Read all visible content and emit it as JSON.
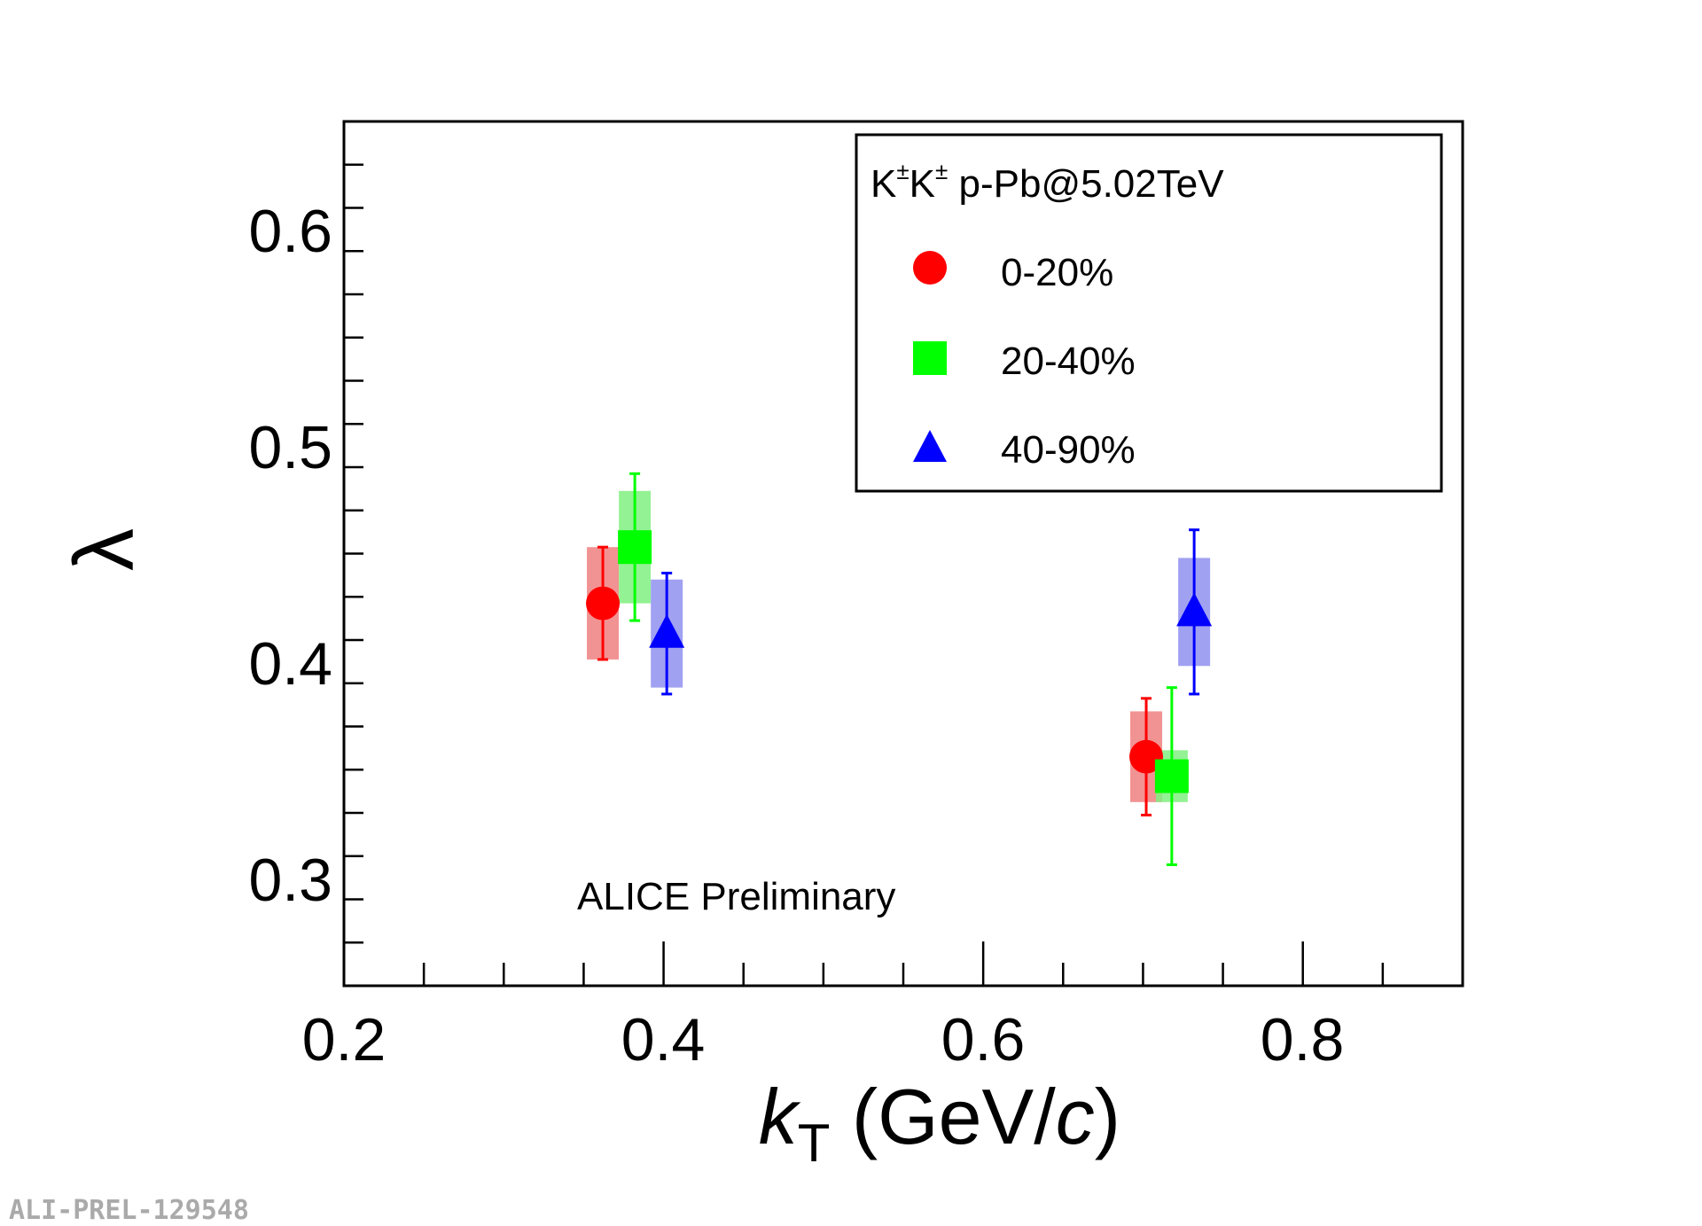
{
  "chart_data": {
    "type": "scatter",
    "xlabel": {
      "symbol": "k",
      "sub": "T",
      "unit_open": " (GeV/",
      "unit_var": "c",
      "unit_close": ")"
    },
    "ylabel": "λ",
    "xlim": [
      0.2,
      0.9
    ],
    "ylim": [
      0.25,
      0.65
    ],
    "x_ticks": [
      "0.2",
      "0.4",
      "0.6",
      "0.8"
    ],
    "y_ticks": [
      "0.3",
      "0.4",
      "0.5",
      "0.6"
    ],
    "annotation": "ALICE Preliminary",
    "legend": {
      "title": "K±K± p-Pb@5.02TeV",
      "title_parts": {
        "k1": "K",
        "sup1": "±",
        "k2": "K",
        "sup2": "±",
        "rest": " p-Pb@5.02TeV"
      },
      "placement": "top-right"
    },
    "series": [
      {
        "name": "0-20%",
        "marker": "circle",
        "color": "#ff0000",
        "sys_color": "#f08080",
        "x": [
          0.362,
          0.702
        ],
        "y": [
          0.427,
          0.356
        ],
        "stat_err": [
          0.026,
          0.027
        ],
        "sys_err": [
          0.026,
          0.021
        ]
      },
      {
        "name": "20-40%",
        "marker": "square",
        "color": "#00ff00",
        "sys_color": "#80f080",
        "x": [
          0.382,
          0.718
        ],
        "y": [
          0.453,
          0.347
        ],
        "stat_err": [
          0.034,
          0.041
        ],
        "sys_err": [
          0.026,
          0.012
        ]
      },
      {
        "name": "40-90%",
        "marker": "triangle",
        "color": "#0000ff",
        "sys_color": "#9090f0",
        "x": [
          0.402,
          0.732
        ],
        "y": [
          0.413,
          0.423
        ],
        "stat_err": [
          0.028,
          0.038
        ],
        "sys_err": [
          0.025,
          0.025
        ]
      }
    ]
  },
  "watermark": "ALI-PREL-129548"
}
